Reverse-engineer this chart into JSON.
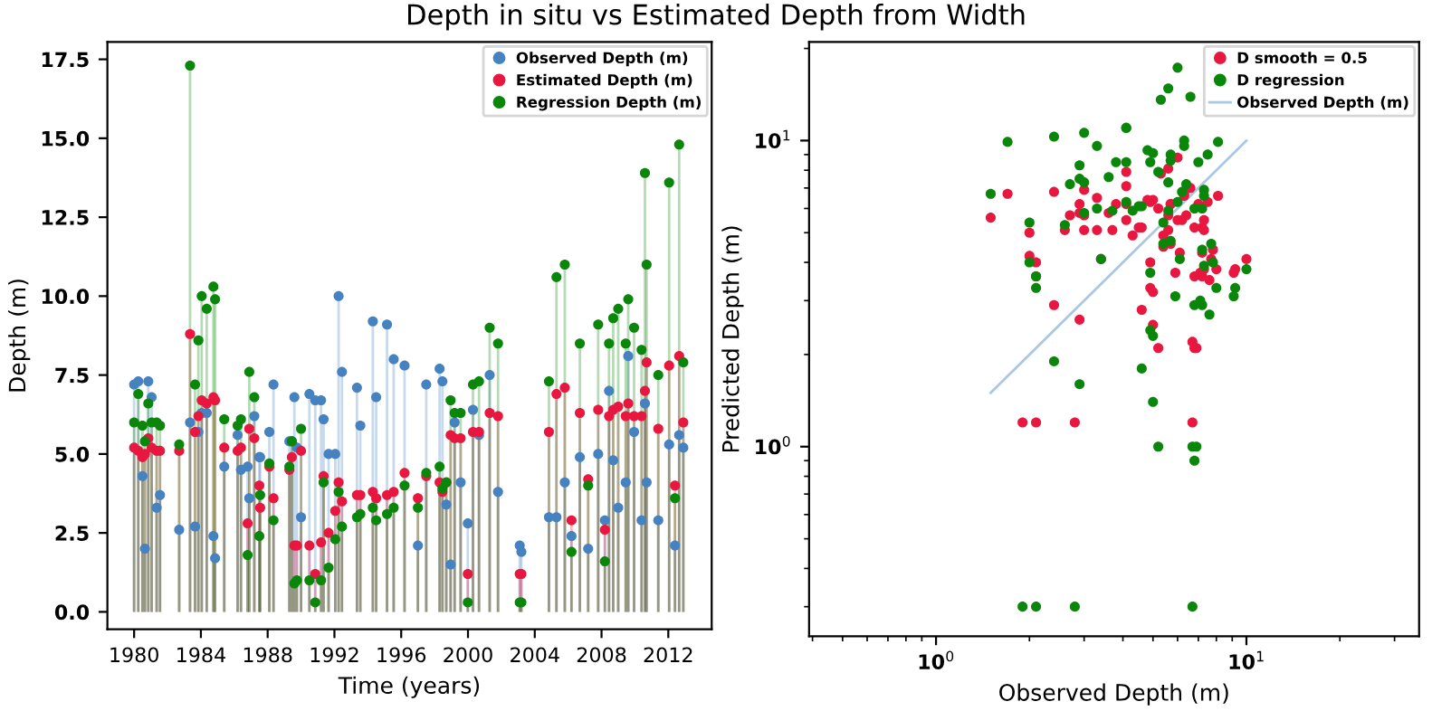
{
  "chart_data": [
    {
      "type": "lollipop",
      "title": "Depth in situ vs Estimated Depth from Width",
      "xlabel": "Time (years)",
      "ylabel": "Depth (m)",
      "x": [
        1980.0,
        1980.25,
        1980.5,
        1980.65,
        1980.85,
        1981.05,
        1981.35,
        1981.55,
        1982.7,
        1983.35,
        1983.65,
        1983.85,
        1984.05,
        1984.35,
        1984.75,
        1984.85,
        1985.4,
        1986.2,
        1986.4,
        1986.8,
        1986.9,
        1987.2,
        1987.5,
        1987.55,
        1988.1,
        1988.35,
        1989.3,
        1989.45,
        1989.6,
        1989.75,
        1990.0,
        1990.5,
        1990.85,
        1991.2,
        1991.35,
        1991.65,
        1992.05,
        1992.25,
        1992.45,
        1993.35,
        1993.55,
        1994.3,
        1994.5,
        1995.15,
        1995.55,
        1996.2,
        1997.0,
        1997.5,
        1998.3,
        1998.47,
        1998.7,
        1998.96,
        1999.2,
        1999.56,
        1999.99,
        2000.3,
        2000.66,
        2001.3,
        2001.8,
        2003.1,
        2003.2,
        2004.85,
        2005.3,
        2005.8,
        2006.2,
        2006.7,
        2007.2,
        2007.8,
        2008.2,
        2008.45,
        2008.7,
        2009.0,
        2009.45,
        2009.6,
        2009.95,
        2010.4,
        2010.6,
        2010.7,
        2011.4,
        2012.05,
        2012.4,
        2012.65,
        2012.9
      ],
      "series": [
        {
          "name": "Observed Depth (m)",
          "color": "#4682c0",
          "values": [
            7.2,
            7.3,
            4.3,
            2.0,
            7.3,
            6.8,
            3.3,
            3.7,
            2.6,
            6.0,
            2.7,
            5.7,
            6.3,
            6.3,
            2.4,
            1.7,
            4.6,
            5.6,
            4.5,
            4.6,
            3.6,
            6.2,
            4.9,
            4.9,
            5.7,
            7.2,
            5.4,
            5.4,
            6.8,
            5.2,
            3.0,
            6.9,
            6.7,
            6.7,
            6.1,
            5.0,
            5.0,
            10.0,
            7.6,
            7.1,
            5.9,
            9.2,
            6.8,
            9.1,
            8.0,
            7.8,
            2.1,
            7.2,
            7.7,
            7.3,
            3.4,
            1.5,
            6.0,
            4.1,
            2.8,
            6.4,
            5.6,
            7.5,
            3.8,
            2.1,
            1.9,
            3.0,
            3.0,
            4.1,
            2.4,
            4.9,
            2.0,
            5.0,
            2.9,
            7.0,
            4.8,
            3.3,
            4.1,
            8.1,
            5.7,
            2.9,
            6.6,
            4.1,
            2.9,
            5.3,
            2.1,
            5.6,
            5.2
          ]
        },
        {
          "name": "Estimated Depth (m)",
          "color": "#e8173f",
          "values": [
            5.2,
            5.1,
            4.9,
            5.0,
            5.5,
            5.2,
            5.1,
            5.1,
            5.1,
            8.8,
            5.7,
            6.2,
            6.7,
            6.6,
            6.8,
            6.7,
            5.2,
            5.1,
            5.2,
            2.8,
            5.8,
            5.5,
            4.0,
            3.3,
            4.6,
            3.6,
            4.5,
            4.9,
            2.1,
            2.1,
            5.1,
            2.1,
            1.2,
            2.2,
            4.3,
            2.5,
            3.2,
            4.1,
            3.5,
            3.7,
            3.7,
            3.8,
            3.6,
            3.7,
            3.8,
            4.4,
            3.6,
            4.3,
            4.1,
            3.8,
            4.1,
            5.6,
            5.5,
            5.5,
            1.2,
            5.7,
            5.7,
            6.3,
            6.2,
            1.2,
            1.2,
            5.7,
            6.9,
            7.1,
            2.9,
            6.3,
            4.2,
            6.4,
            2.6,
            6.2,
            6.4,
            6.5,
            6.2,
            6.6,
            6.2,
            6.2,
            7.0,
            7.9,
            5.8,
            7.8,
            4.0,
            8.1,
            6.0
          ]
        },
        {
          "name": "Regression Depth (m)",
          "color": "#0a870a",
          "values": [
            6.0,
            6.9,
            5.9,
            5.4,
            6.6,
            6.0,
            6.0,
            5.9,
            5.3,
            17.3,
            7.2,
            8.6,
            10.0,
            9.6,
            10.3,
            9.9,
            6.1,
            5.9,
            6.1,
            1.8,
            7.6,
            6.8,
            2.4,
            3.7,
            4.7,
            2.9,
            4.6,
            5.4,
            0.9,
            1.0,
            5.8,
            1.0,
            0.3,
            1.0,
            4.1,
            1.4,
            2.3,
            3.8,
            2.7,
            3.0,
            3.1,
            3.3,
            2.9,
            3.1,
            3.3,
            4.0,
            3.3,
            4.4,
            4.6,
            3.9,
            4.1,
            6.7,
            6.3,
            6.3,
            0.3,
            7.2,
            7.3,
            9.0,
            8.5,
            0.3,
            0.3,
            7.3,
            10.6,
            11.0,
            1.9,
            8.5,
            4.0,
            9.1,
            1.6,
            8.5,
            9.3,
            9.6,
            8.5,
            9.9,
            9.0,
            8.3,
            13.9,
            11.0,
            7.5,
            13.6,
            3.6,
            14.8,
            7.9
          ]
        }
      ],
      "xlim": [
        1978.4,
        2014.6
      ],
      "ylim": [
        -0.55,
        18.05
      ],
      "xticks": [
        1980,
        1984,
        1988,
        1992,
        1996,
        2000,
        2004,
        2008,
        2012
      ],
      "yticks": [
        {
          "value": 0,
          "label": "0.0"
        },
        {
          "value": 2.5,
          "label": "2.5"
        },
        {
          "value": 5,
          "label": "5.0"
        },
        {
          "value": 7.5,
          "label": "7.5"
        },
        {
          "value": 10,
          "label": "10.0"
        },
        {
          "value": 12.5,
          "label": "12.5"
        },
        {
          "value": 15,
          "label": "15.0"
        },
        {
          "value": 17.5,
          "label": "17.5"
        }
      ],
      "marker": "circle",
      "legend": "top right"
    },
    {
      "type": "scatter",
      "xlabel": "Observed Depth (m)",
      "ylabel": "Predicted Depth (m)",
      "log": "xy",
      "series": [
        {
          "name": "D smooth = 0.5",
          "color": "#e8173f",
          "x": [
            7.2,
            7.3,
            4.3,
            2.0,
            7.3,
            6.8,
            3.3,
            3.7,
            2.6,
            6.0,
            2.7,
            5.7,
            6.3,
            6.3,
            2.4,
            1.7,
            4.6,
            5.6,
            4.5,
            4.6,
            3.6,
            6.2,
            4.9,
            4.9,
            5.7,
            7.2,
            5.4,
            5.4,
            6.8,
            5.2,
            3.0,
            6.9,
            6.7,
            6.7,
            6.1,
            5.0,
            5.0,
            10.0,
            7.6,
            7.1,
            5.9,
            9.2,
            6.8,
            9.1,
            8.0,
            7.8,
            2.1,
            7.2,
            7.7,
            7.3,
            3.4,
            1.5,
            6.0,
            4.1,
            2.8,
            6.4,
            5.6,
            7.5,
            3.8,
            2.1,
            1.9,
            3.0,
            3.0,
            4.1,
            2.4,
            4.9,
            2.0,
            5.0,
            2.9,
            7.0,
            4.8,
            3.3,
            4.1,
            8.1,
            5.7,
            2.9,
            6.6,
            4.1,
            2.9,
            5.3,
            2.1,
            5.6,
            5.2
          ],
          "values": [
            5.2,
            5.1,
            4.9,
            5.0,
            5.5,
            5.2,
            5.1,
            5.1,
            5.1,
            8.8,
            5.7,
            6.2,
            6.7,
            6.6,
            6.8,
            6.7,
            5.2,
            5.1,
            5.2,
            2.8,
            5.8,
            5.5,
            4.0,
            3.3,
            4.6,
            3.6,
            4.5,
            4.9,
            2.1,
            2.1,
            5.1,
            2.1,
            1.2,
            2.2,
            4.3,
            2.5,
            3.2,
            4.1,
            3.5,
            3.7,
            3.7,
            3.8,
            3.6,
            3.7,
            3.8,
            4.4,
            3.6,
            4.3,
            4.1,
            3.8,
            4.1,
            5.6,
            5.5,
            5.5,
            1.2,
            5.7,
            5.7,
            6.3,
            6.2,
            1.2,
            1.2,
            5.7,
            6.9,
            7.1,
            2.9,
            6.3,
            4.2,
            6.4,
            2.6,
            6.2,
            6.4,
            6.5,
            6.2,
            6.6,
            6.2,
            6.2,
            7.0,
            7.9,
            5.8,
            7.8,
            4.0,
            8.1,
            6.0
          ]
        },
        {
          "name": "D regression",
          "color": "#0a870a",
          "x": [
            7.2,
            7.3,
            4.3,
            2.0,
            7.3,
            6.8,
            3.3,
            3.7,
            2.6,
            6.0,
            2.7,
            5.7,
            6.3,
            6.3,
            2.4,
            1.7,
            4.6,
            5.6,
            4.5,
            4.6,
            3.6,
            6.2,
            4.9,
            4.9,
            5.7,
            7.2,
            5.4,
            5.4,
            6.8,
            5.2,
            3.0,
            6.9,
            6.7,
            6.7,
            6.1,
            5.0,
            5.0,
            10.0,
            7.6,
            7.1,
            5.9,
            9.2,
            6.8,
            9.1,
            8.0,
            7.8,
            2.1,
            7.2,
            7.7,
            7.3,
            3.4,
            1.5,
            6.0,
            4.1,
            2.8,
            6.4,
            5.6,
            7.5,
            3.8,
            2.1,
            1.9,
            3.0,
            3.0,
            4.1,
            2.4,
            4.9,
            2.0,
            5.0,
            2.9,
            7.0,
            4.8,
            3.3,
            4.1,
            8.1,
            5.7,
            2.9,
            6.6,
            4.1,
            2.9,
            5.3,
            2.1,
            5.6,
            5.2
          ],
          "values": [
            6.0,
            6.9,
            5.9,
            5.4,
            6.6,
            6.0,
            6.0,
            5.9,
            5.3,
            17.3,
            7.2,
            8.6,
            10.0,
            9.6,
            10.3,
            9.9,
            6.1,
            5.9,
            6.1,
            1.8,
            7.6,
            6.8,
            2.4,
            3.7,
            4.7,
            2.9,
            4.6,
            5.4,
            0.9,
            1.0,
            5.8,
            1.0,
            0.3,
            1.0,
            4.1,
            1.4,
            2.3,
            3.8,
            2.7,
            3.0,
            3.1,
            3.3,
            2.9,
            3.1,
            3.3,
            4.0,
            3.3,
            4.4,
            4.6,
            3.9,
            4.1,
            6.7,
            6.3,
            6.3,
            0.3,
            7.2,
            7.3,
            9.0,
            8.5,
            0.3,
            0.3,
            7.3,
            10.6,
            11.0,
            1.9,
            8.5,
            4.0,
            9.1,
            1.6,
            8.5,
            9.3,
            9.6,
            8.5,
            9.9,
            9.0,
            8.3,
            13.9,
            11.0,
            7.5,
            13.6,
            3.6,
            14.8,
            7.9
          ]
        },
        {
          "name": "Observed Depth (m)",
          "type": "line",
          "marker": "none",
          "color": "#a9c8e4",
          "x": [
            1.5,
            10.0
          ],
          "values": [
            1.5,
            10.0
          ]
        }
      ],
      "xlim": [
        0.39,
        36
      ],
      "ylim": [
        0.24,
        21
      ],
      "xticks": [
        {
          "value": 1,
          "label": "10$^{0}$"
        },
        {
          "value": 10,
          "label": "10$^{1}$"
        }
      ],
      "yticks": [
        {
          "value": 1,
          "label": "10$^{0}$"
        },
        {
          "value": 10,
          "label": "10$^{1}$"
        }
      ],
      "marker": "circle",
      "legend": "top right"
    }
  ]
}
